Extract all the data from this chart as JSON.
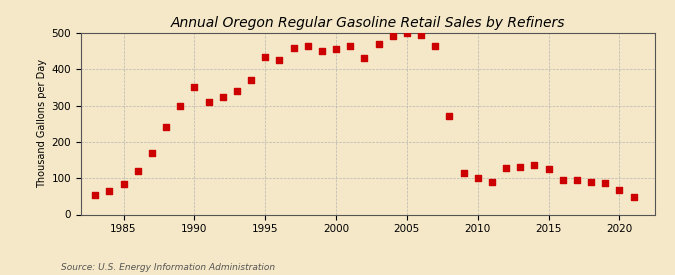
{
  "title": "Annual Oregon Regular Gasoline Retail Sales by Refiners",
  "ylabel": "Thousand Gallons per Day",
  "source": "Source: U.S. Energy Information Administration",
  "background_color": "#f5e8c8",
  "plot_bg_color": "#f5e8c8",
  "marker_color": "#cc0000",
  "years": [
    1983,
    1984,
    1985,
    1986,
    1987,
    1988,
    1989,
    1990,
    1991,
    1992,
    1993,
    1994,
    1995,
    1996,
    1997,
    1998,
    1999,
    2000,
    2001,
    2002,
    2003,
    2004,
    2005,
    2006,
    2007,
    2008,
    2009,
    2010,
    2011,
    2012,
    2013,
    2014,
    2015,
    2016,
    2017,
    2018,
    2019,
    2020,
    2021
  ],
  "values": [
    55,
    65,
    85,
    120,
    170,
    240,
    300,
    350,
    310,
    325,
    340,
    370,
    435,
    425,
    460,
    465,
    450,
    455,
    465,
    430,
    470,
    493,
    500,
    495,
    465,
    270,
    115,
    100,
    90,
    128,
    130,
    135,
    125,
    95,
    95,
    90,
    88,
    68,
    48
  ],
  "xlim": [
    1982,
    2022.5
  ],
  "ylim": [
    0,
    500
  ],
  "yticks": [
    0,
    100,
    200,
    300,
    400,
    500
  ],
  "xticks": [
    1985,
    1990,
    1995,
    2000,
    2005,
    2010,
    2015,
    2020
  ],
  "title_fontsize": 10,
  "ylabel_fontsize": 7,
  "tick_fontsize": 7.5,
  "source_fontsize": 6.5,
  "marker_size": 15,
  "grid_color": "#aaaaaa",
  "grid_alpha": 0.8,
  "spine_color": "#555555"
}
